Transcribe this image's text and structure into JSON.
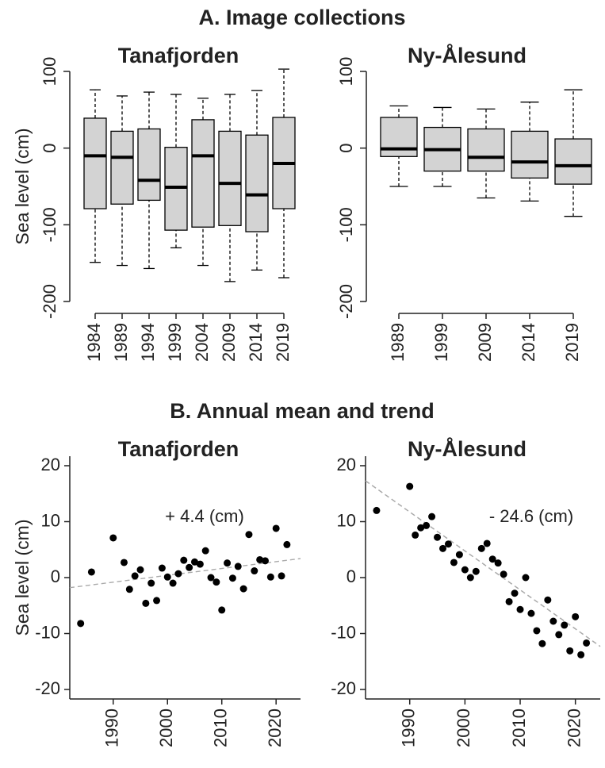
{
  "section_titles": [
    "A. Image collections",
    "B. Annual mean and trend"
  ],
  "chart_data": [
    {
      "type": "box",
      "title": "Tanafjorden",
      "ylabel": "Sea level (cm)",
      "categories": [
        "1984",
        "1989",
        "1994",
        "1999",
        "2004",
        "2009",
        "2014",
        "2019"
      ],
      "whisker_low": [
        -149,
        -153,
        -157,
        -130,
        -153,
        -174,
        -159,
        -169
      ],
      "q1": [
        -79,
        -73,
        -68,
        -107,
        -103,
        -101,
        -109,
        -79
      ],
      "median": [
        -10,
        -12,
        -42,
        -51,
        -10,
        -46,
        -61,
        -20
      ],
      "q3": [
        39,
        22,
        25,
        1,
        37,
        22,
        17,
        40
      ],
      "whisker_high": [
        76,
        68,
        73,
        70,
        65,
        70,
        75,
        103
      ],
      "color": "#d3d3d3",
      "ylim": [
        -200,
        100
      ],
      "yticks": [
        -200,
        -100,
        0,
        100
      ]
    },
    {
      "type": "box",
      "title": "Ny-Ålesund",
      "categories": [
        "1989",
        "1999",
        "2009",
        "2014",
        "2019"
      ],
      "whisker_low": [
        -50,
        -50,
        -65,
        -69,
        -89
      ],
      "q1": [
        -11,
        -30,
        -30,
        -39,
        -47
      ],
      "median": [
        -1,
        -2,
        -12,
        -18,
        -23
      ],
      "q3": [
        40,
        27,
        25,
        22,
        12
      ],
      "whisker_high": [
        55,
        53,
        51,
        60,
        76
      ],
      "color": "#d3d3d3",
      "ylim": [
        -200,
        100
      ],
      "yticks": [
        -200,
        -100,
        0,
        100
      ]
    },
    {
      "type": "scatter",
      "title": "Tanafjorden",
      "ylabel": "Sea level (cm)",
      "annotation": "+ 4.4 (cm)",
      "x": [
        1984,
        1986,
        1990,
        1992,
        1993,
        1994,
        1995,
        1996,
        1997,
        1998,
        1999,
        2000,
        2001,
        2002,
        2003,
        2004,
        2005,
        2006,
        2007,
        2008,
        2009,
        2010,
        2011,
        2012,
        2013,
        2014,
        2015,
        2016,
        2017,
        2018,
        2019,
        2020,
        2021,
        2022
      ],
      "values": [
        -8.2,
        1.0,
        7.1,
        2.7,
        -2.1,
        0.3,
        1.4,
        -4.6,
        -1.0,
        -4.1,
        1.7,
        0.1,
        -1.0,
        0.7,
        3.1,
        1.8,
        2.8,
        2.4,
        4.8,
        0.0,
        -0.8,
        -5.8,
        2.6,
        -0.1,
        2.0,
        -2.0,
        7.7,
        1.2,
        3.2,
        3.0,
        0.1,
        8.8,
        0.3,
        5.9
      ],
      "color": "#000000",
      "trend": {
        "x": [
          1982,
          2024.5
        ],
        "values": [
          -1.8,
          3.4
        ],
        "color": "#aaaaaa"
      },
      "xlim": [
        1982,
        2024.5
      ],
      "xticks": [
        1990,
        2000,
        2010,
        2020
      ],
      "ylim": [
        -21.7,
        21.7
      ],
      "yticks": [
        -20,
        -10,
        0,
        10,
        20
      ]
    },
    {
      "type": "scatter",
      "title": "Ny-Ålesund",
      "annotation": "- 24.6 (cm)",
      "x": [
        1984,
        1990,
        1991,
        1992,
        1993,
        1994,
        1995,
        1996,
        1997,
        1998,
        1999,
        2000,
        2001,
        2002,
        2003,
        2004,
        2005,
        2006,
        2007,
        2008,
        2009,
        2010,
        2011,
        2012,
        2013,
        2014,
        2015,
        2016,
        2017,
        2018,
        2019,
        2020,
        2021,
        2022
      ],
      "values": [
        12.0,
        16.3,
        7.6,
        8.9,
        9.3,
        10.9,
        7.2,
        5.2,
        6.0,
        2.7,
        4.1,
        1.4,
        0.0,
        1.1,
        5.2,
        6.1,
        3.3,
        2.6,
        0.6,
        -4.3,
        -2.8,
        -5.7,
        0.0,
        -6.4,
        -9.5,
        -11.8,
        -4.0,
        -7.8,
        -10.2,
        -8.5,
        -13.1,
        -7.0,
        -13.8,
        -11.7
      ],
      "color": "#000000",
      "trend": {
        "x": [
          1982,
          2024.5
        ],
        "values": [
          17.3,
          -12.3
        ],
        "color": "#aaaaaa"
      },
      "xlim": [
        1982,
        2024.5
      ],
      "xticks": [
        1990,
        2000,
        2010,
        2020
      ],
      "ylim": [
        -21.7,
        21.7
      ],
      "yticks": [
        -20,
        -10,
        0,
        10,
        20
      ]
    }
  ]
}
